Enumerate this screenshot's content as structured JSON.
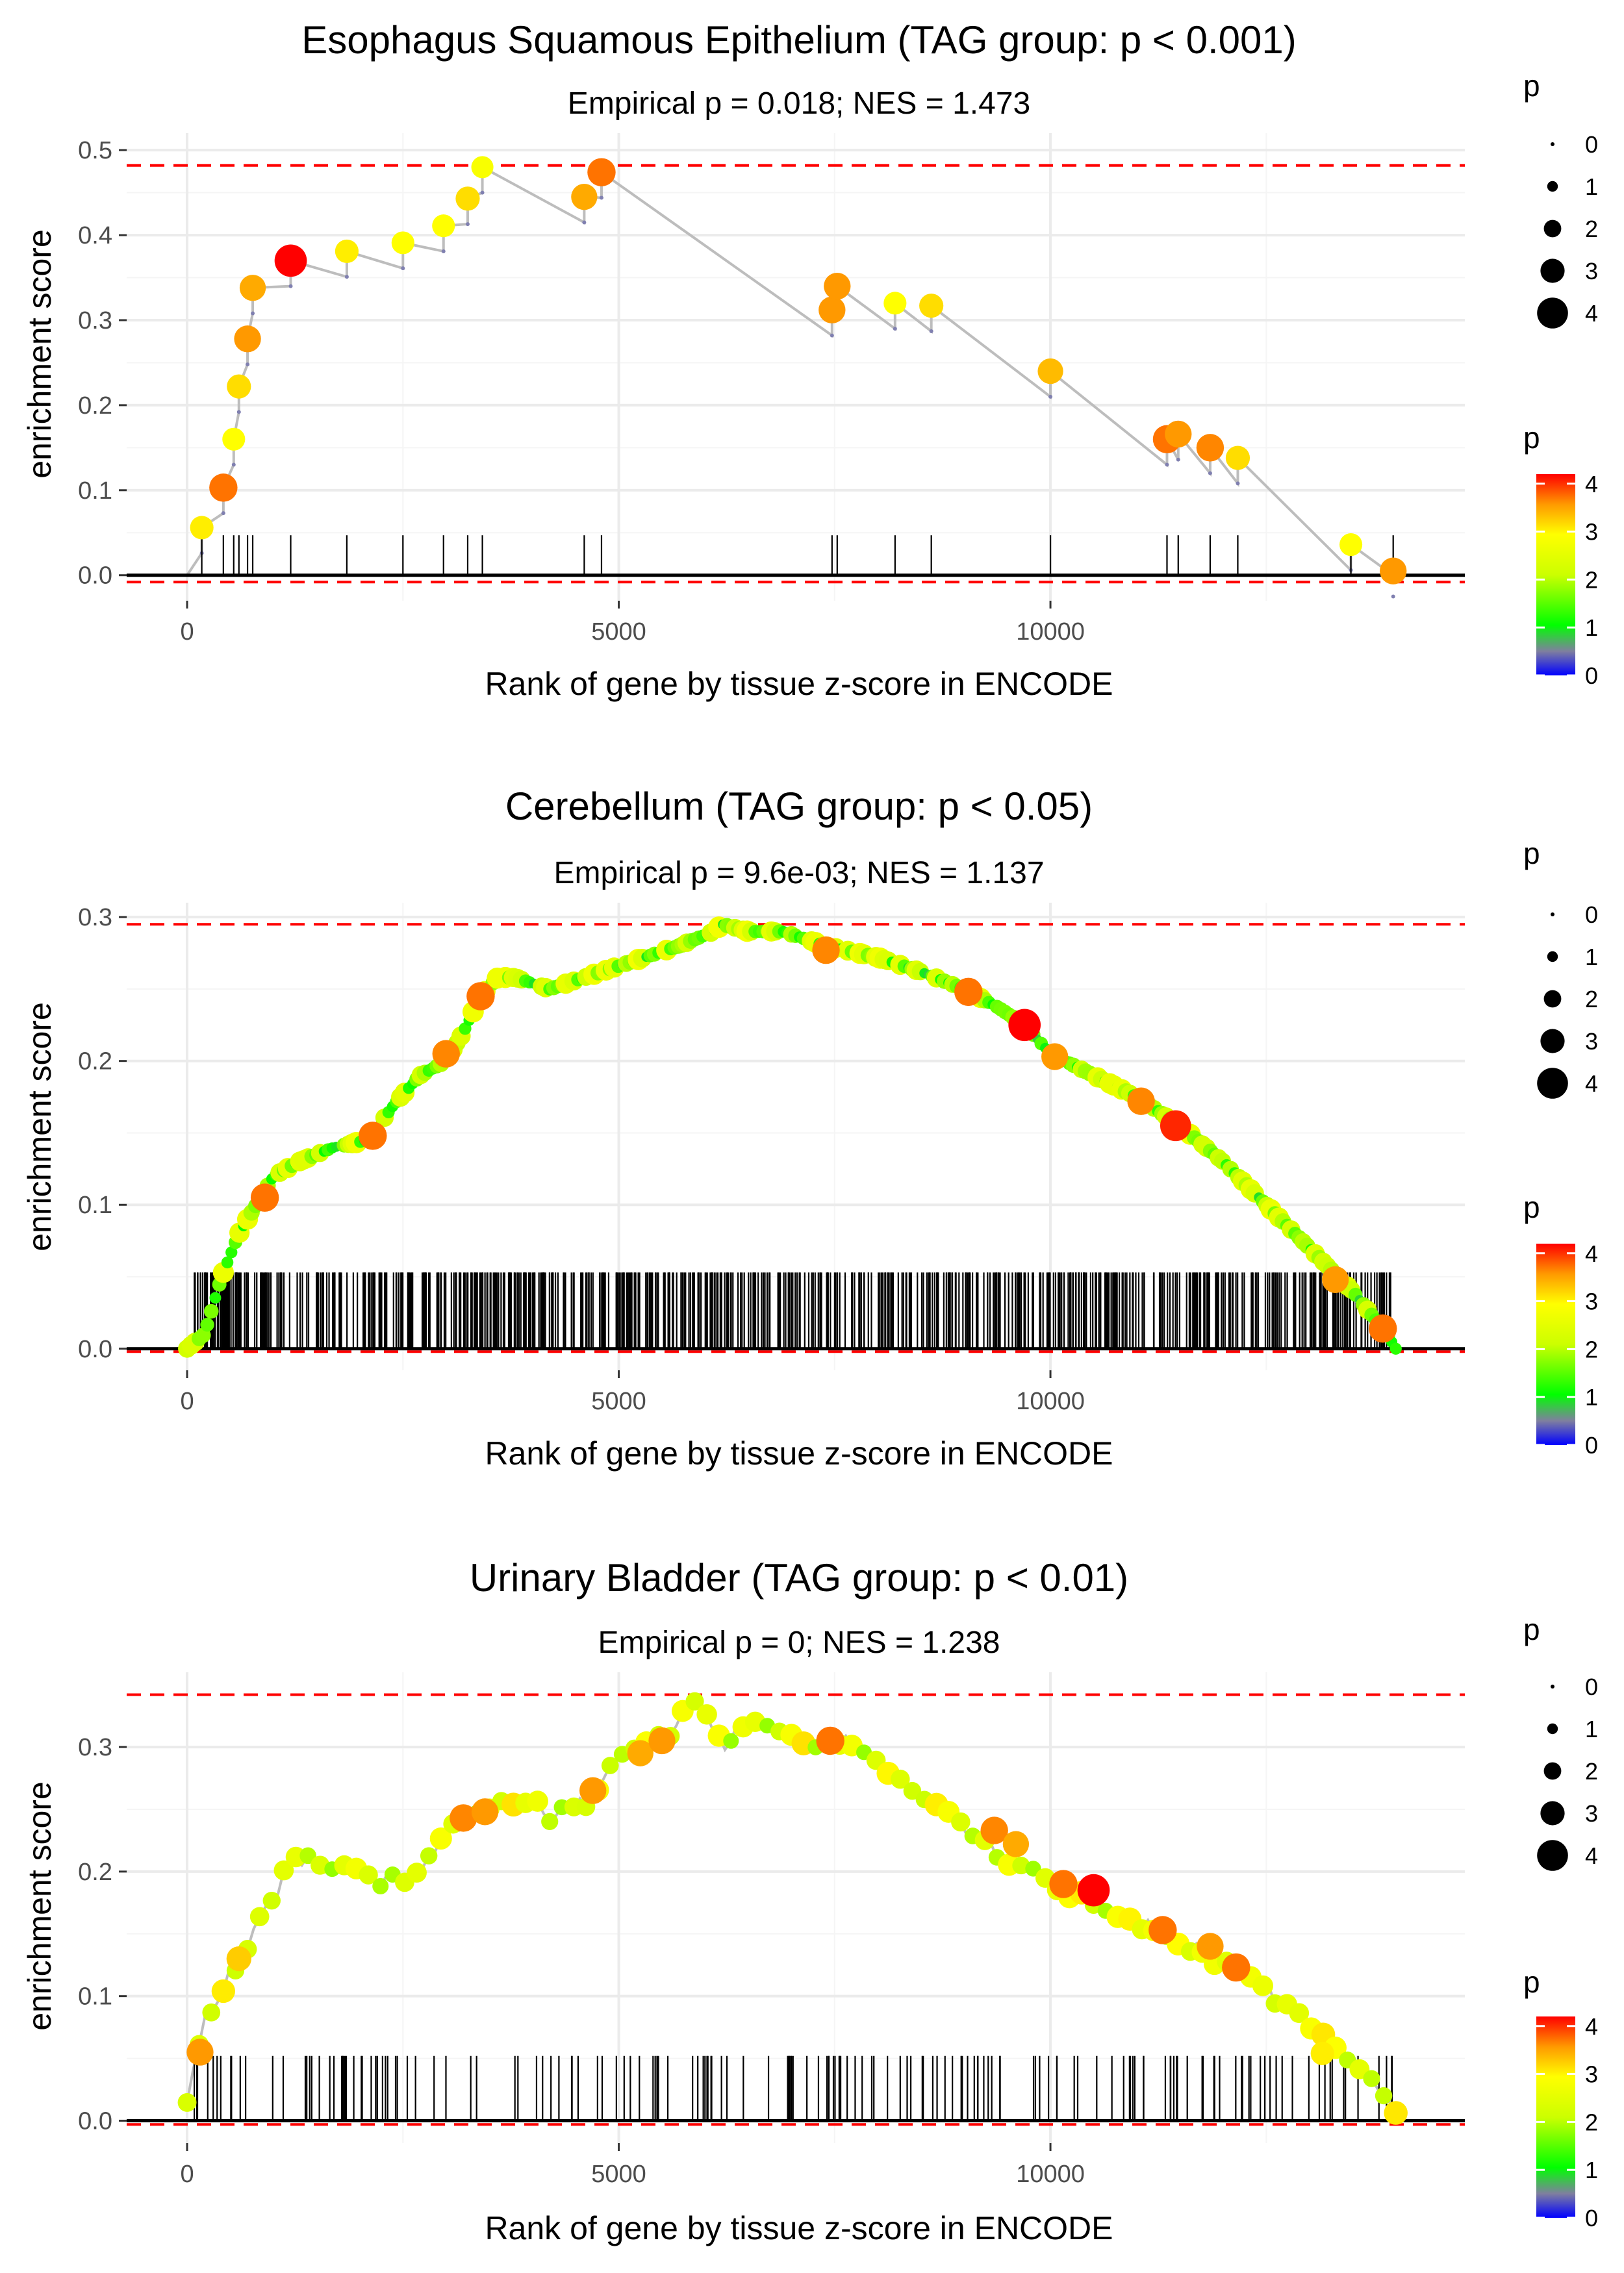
{
  "chart_data": [
    {
      "type": "line",
      "title": "Esophagus Squamous Epithelium (TAG group: p < 0.001)",
      "subtitle": "Empirical p = 0.018; NES = 1.473",
      "xlabel": "Rank of gene by tissue z-score in ENCODE",
      "ylabel": "enrichment score",
      "xlim": [
        -700,
        14800
      ],
      "ylim": [
        -0.03,
        0.52
      ],
      "x_ticks": [
        0,
        5000,
        10000
      ],
      "y_ticks": [
        0.0,
        0.1,
        0.2,
        0.3,
        0.4,
        0.5
      ],
      "y_tick_labels": [
        "0.0",
        "0.1",
        "0.2",
        "0.3",
        "0.4",
        "0.5"
      ],
      "max_es": 0.482,
      "min_es": -0.008,
      "points": [
        {
          "x": 170,
          "y": 0.056,
          "p": 2.9
        },
        {
          "x": 420,
          "y": 0.103,
          "p": 3.6
        },
        {
          "x": 540,
          "y": 0.16,
          "p": 2.8
        },
        {
          "x": 600,
          "y": 0.222,
          "p": 3.0
        },
        {
          "x": 700,
          "y": 0.278,
          "p": 3.4
        },
        {
          "x": 760,
          "y": 0.338,
          "p": 3.3
        },
        {
          "x": 1200,
          "y": 0.37,
          "p": 4.2
        },
        {
          "x": 1850,
          "y": 0.381,
          "p": 2.9
        },
        {
          "x": 2500,
          "y": 0.391,
          "p": 2.8
        },
        {
          "x": 2970,
          "y": 0.411,
          "p": 2.8
        },
        {
          "x": 3250,
          "y": 0.443,
          "p": 3.0
        },
        {
          "x": 3420,
          "y": 0.48,
          "p": 2.7
        },
        {
          "x": 4600,
          "y": 0.445,
          "p": 3.3
        },
        {
          "x": 4800,
          "y": 0.474,
          "p": 3.6
        },
        {
          "x": 7470,
          "y": 0.312,
          "p": 3.4
        },
        {
          "x": 7530,
          "y": 0.34,
          "p": 3.4
        },
        {
          "x": 8200,
          "y": 0.32,
          "p": 2.8
        },
        {
          "x": 8620,
          "y": 0.317,
          "p": 3.0
        },
        {
          "x": 10000,
          "y": 0.24,
          "p": 3.2
        },
        {
          "x": 11350,
          "y": 0.16,
          "p": 3.6
        },
        {
          "x": 11480,
          "y": 0.166,
          "p": 3.4
        },
        {
          "x": 11850,
          "y": 0.15,
          "p": 3.5
        },
        {
          "x": 12170,
          "y": 0.138,
          "p": 3.0
        },
        {
          "x": 13480,
          "y": 0.036,
          "p": 2.8
        },
        {
          "x": 13970,
          "y": 0.005,
          "p": 3.4
        }
      ],
      "legend": {
        "size_title": "p",
        "size_labels": [
          "0",
          "1",
          "2",
          "3",
          "4"
        ],
        "color_title": "p",
        "color_labels": [
          "0",
          "1",
          "2",
          "3",
          "4"
        ]
      }
    },
    {
      "type": "line",
      "title": "Cerebellum (TAG group: p < 0.05)",
      "subtitle": "Empirical p = 9.6e-03; NES = 1.137",
      "xlabel": "Rank of gene by tissue z-score in ENCODE",
      "ylabel": "enrichment score",
      "xlim": [
        -700,
        14800
      ],
      "ylim": [
        -0.015,
        0.31
      ],
      "x_ticks": [
        0,
        5000,
        10000
      ],
      "y_ticks": [
        0.0,
        0.1,
        0.2,
        0.3
      ],
      "y_tick_labels": [
        "0.0",
        "0.1",
        "0.2",
        "0.3"
      ],
      "max_es": 0.295,
      "min_es": -0.002,
      "curve": [
        [
          0,
          0.0
        ],
        [
          200,
          0.01
        ],
        [
          400,
          0.05
        ],
        [
          600,
          0.08
        ],
        [
          800,
          0.1
        ],
        [
          1000,
          0.12
        ],
        [
          1300,
          0.13
        ],
        [
          1700,
          0.14
        ],
        [
          2100,
          0.145
        ],
        [
          2400,
          0.17
        ],
        [
          2700,
          0.19
        ],
        [
          3000,
          0.2
        ],
        [
          3200,
          0.22
        ],
        [
          3400,
          0.245
        ],
        [
          3600,
          0.258
        ],
        [
          3800,
          0.258
        ],
        [
          4200,
          0.25
        ],
        [
          4700,
          0.26
        ],
        [
          5200,
          0.27
        ],
        [
          5700,
          0.28
        ],
        [
          6100,
          0.29
        ],
        [
          6200,
          0.295
        ],
        [
          6500,
          0.29
        ],
        [
          6900,
          0.29
        ],
        [
          7400,
          0.28
        ],
        [
          8000,
          0.272
        ],
        [
          8500,
          0.262
        ],
        [
          9000,
          0.25
        ],
        [
          9400,
          0.237
        ],
        [
          9700,
          0.225
        ],
        [
          10000,
          0.205
        ],
        [
          10500,
          0.19
        ],
        [
          11000,
          0.175
        ],
        [
          11500,
          0.155
        ],
        [
          12000,
          0.13
        ],
        [
          12500,
          0.1
        ],
        [
          13000,
          0.07
        ],
        [
          13500,
          0.04
        ],
        [
          13900,
          0.01
        ],
        [
          14000,
          0.0
        ]
      ],
      "highlight_points": [
        {
          "x": 900,
          "y": 0.105,
          "p": 3.6
        },
        {
          "x": 2150,
          "y": 0.148,
          "p": 3.6
        },
        {
          "x": 3000,
          "y": 0.205,
          "p": 3.5
        },
        {
          "x": 3400,
          "y": 0.245,
          "p": 3.6
        },
        {
          "x": 7400,
          "y": 0.277,
          "p": 3.5
        },
        {
          "x": 9050,
          "y": 0.248,
          "p": 3.6
        },
        {
          "x": 9700,
          "y": 0.225,
          "p": 4.2
        },
        {
          "x": 10050,
          "y": 0.203,
          "p": 3.4
        },
        {
          "x": 11050,
          "y": 0.172,
          "p": 3.5
        },
        {
          "x": 11450,
          "y": 0.155,
          "p": 4.0
        },
        {
          "x": 13300,
          "y": 0.048,
          "p": 3.4
        },
        {
          "x": 13850,
          "y": 0.014,
          "p": 3.6
        }
      ],
      "legend": {
        "size_title": "p",
        "size_labels": [
          "0",
          "1",
          "2",
          "3",
          "4"
        ],
        "color_title": "p",
        "color_labels": [
          "0",
          "1",
          "2",
          "3",
          "4"
        ]
      }
    },
    {
      "type": "line",
      "title": "Urinary Bladder (TAG group: p < 0.01)",
      "subtitle": "Empirical p = 0; NES = 1.238",
      "xlabel": "Rank of gene by tissue z-score in ENCODE",
      "ylabel": "enrichment score",
      "xlim": [
        -700,
        14800
      ],
      "ylim": [
        -0.018,
        0.36
      ],
      "x_ticks": [
        0,
        5000,
        10000
      ],
      "y_ticks": [
        0.0,
        0.1,
        0.2,
        0.3
      ],
      "y_tick_labels": [
        "0.0",
        "0.1",
        "0.2",
        "0.3"
      ],
      "max_es": 0.342,
      "min_es": -0.003,
      "curve": [
        [
          0,
          0.01
        ],
        [
          100,
          0.055
        ],
        [
          200,
          0.08
        ],
        [
          350,
          0.095
        ],
        [
          500,
          0.12
        ],
        [
          650,
          0.13
        ],
        [
          800,
          0.16
        ],
        [
          1000,
          0.175
        ],
        [
          1200,
          0.21
        ],
        [
          1400,
          0.21
        ],
        [
          1700,
          0.205
        ],
        [
          2000,
          0.2
        ],
        [
          2200,
          0.19
        ],
        [
          2500,
          0.195
        ],
        [
          2800,
          0.21
        ],
        [
          3000,
          0.23
        ],
        [
          3300,
          0.245
        ],
        [
          3600,
          0.255
        ],
        [
          3900,
          0.26
        ],
        [
          4200,
          0.245
        ],
        [
          4600,
          0.255
        ],
        [
          5000,
          0.29
        ],
        [
          5300,
          0.3
        ],
        [
          5600,
          0.31
        ],
        [
          5900,
          0.342
        ],
        [
          6200,
          0.3
        ],
        [
          6500,
          0.325
        ],
        [
          6900,
          0.31
        ],
        [
          7200,
          0.295
        ],
        [
          7500,
          0.305
        ],
        [
          7700,
          0.305
        ],
        [
          8000,
          0.285
        ],
        [
          8500,
          0.26
        ],
        [
          9000,
          0.235
        ],
        [
          9500,
          0.21
        ],
        [
          10000,
          0.19
        ],
        [
          10500,
          0.175
        ],
        [
          11000,
          0.16
        ],
        [
          11500,
          0.145
        ],
        [
          12000,
          0.125
        ],
        [
          12500,
          0.105
        ],
        [
          13000,
          0.075
        ],
        [
          13500,
          0.05
        ],
        [
          14000,
          0.01
        ]
      ],
      "highlight_points": [
        {
          "x": 150,
          "y": 0.055,
          "p": 3.4
        },
        {
          "x": 600,
          "y": 0.13,
          "p": 3.1
        },
        {
          "x": 3200,
          "y": 0.243,
          "p": 3.5
        },
        {
          "x": 3450,
          "y": 0.248,
          "p": 3.4
        },
        {
          "x": 4700,
          "y": 0.265,
          "p": 3.4
        },
        {
          "x": 5250,
          "y": 0.295,
          "p": 3.3
        },
        {
          "x": 5500,
          "y": 0.305,
          "p": 3.4
        },
        {
          "x": 7450,
          "y": 0.305,
          "p": 3.6
        },
        {
          "x": 9350,
          "y": 0.233,
          "p": 3.5
        },
        {
          "x": 9600,
          "y": 0.222,
          "p": 3.3
        },
        {
          "x": 10150,
          "y": 0.19,
          "p": 3.6
        },
        {
          "x": 10500,
          "y": 0.185,
          "p": 4.2
        },
        {
          "x": 11300,
          "y": 0.153,
          "p": 3.6
        },
        {
          "x": 11850,
          "y": 0.14,
          "p": 3.4
        },
        {
          "x": 12150,
          "y": 0.123,
          "p": 3.6
        },
        {
          "x": 13150,
          "y": 0.054,
          "p": 2.9
        }
      ],
      "legend": {
        "size_title": "p",
        "size_labels": [
          "0",
          "1",
          "2",
          "3",
          "4"
        ],
        "color_title": "p",
        "color_labels": [
          "0",
          "1",
          "2",
          "3",
          "4"
        ]
      }
    }
  ]
}
